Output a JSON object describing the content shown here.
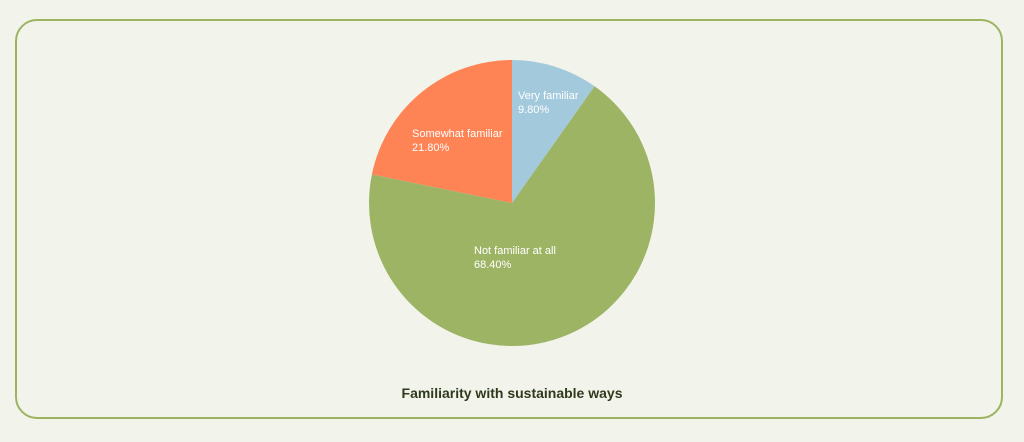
{
  "chart_data": {
    "type": "pie",
    "title": "Familiarity with sustainable ways",
    "slices": [
      {
        "label": "Very familiar",
        "value": 9.8,
        "display": "9.80%",
        "color": "#a3c9dc"
      },
      {
        "label": "Not familiar at all",
        "value": 68.4,
        "display": "68.40%",
        "color": "#9eb465"
      },
      {
        "label": "Somewhat familiar",
        "value": 21.8,
        "display": "21.80%",
        "color": "#fe8456"
      }
    ],
    "legend": "none",
    "start": "top-clockwise",
    "frame_color": "#9cb35f",
    "background": "#f2f4ec"
  }
}
